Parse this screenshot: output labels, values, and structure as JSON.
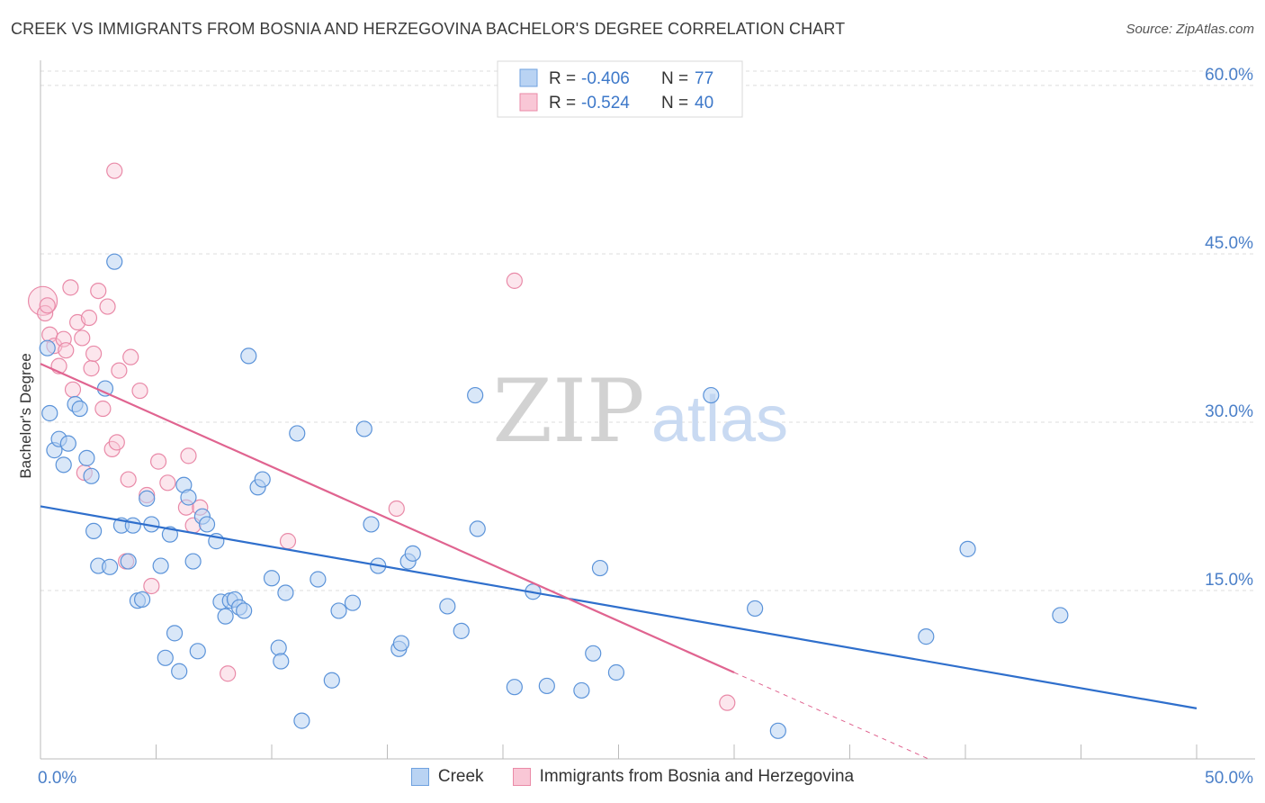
{
  "title": "CREEK VS IMMIGRANTS FROM BOSNIA AND HERZEGOVINA BACHELOR'S DEGREE CORRELATION CHART",
  "source": "Source: ZipAtlas.com",
  "watermark": {
    "zip": "ZIP",
    "atlas": "atlas"
  },
  "colors": {
    "blue": "#5b93d9",
    "blue_line": "#2f6fcc",
    "pink": "#e98aa8",
    "pink_line": "#e06490",
    "axis_text": "#4a7fc8"
  },
  "legend_top": [
    {
      "r_label": "R = ",
      "r_value": "-0.406",
      "n_label": "N = ",
      "n_value": "77"
    },
    {
      "r_label": "R = ",
      "r_value": "-0.524",
      "n_label": "N = ",
      "n_value": "40"
    }
  ],
  "chart_data": {
    "type": "scatter",
    "title": "CREEK VS IMMIGRANTS FROM BOSNIA AND HERZEGOVINA BACHELOR'S DEGREE CORRELATION CHART",
    "xlabel": "",
    "ylabel": "Bachelor's Degree",
    "xlim": [
      0,
      50
    ],
    "ylim": [
      0,
      62
    ],
    "x_ticks": [
      {
        "value": 0,
        "label": "0.0%"
      },
      {
        "value": 50,
        "label": "50.0%"
      }
    ],
    "y_ticks": [
      {
        "value": 15,
        "label": "15.0%"
      },
      {
        "value": 30,
        "label": "30.0%"
      },
      {
        "value": 45,
        "label": "45.0%"
      },
      {
        "value": 60,
        "label": "60.0%"
      }
    ],
    "series": [
      {
        "name": "Creek",
        "color": "#5b93d9",
        "trend": {
          "x0": 0,
          "y0": 22.5,
          "x1": 50,
          "y1": 4.5
        },
        "points": [
          [
            0.3,
            36.6
          ],
          [
            0.4,
            30.8
          ],
          [
            0.6,
            27.5
          ],
          [
            0.8,
            28.5
          ],
          [
            1.0,
            26.2
          ],
          [
            1.2,
            28.1
          ],
          [
            1.5,
            31.6
          ],
          [
            1.7,
            31.2
          ],
          [
            2.0,
            26.8
          ],
          [
            2.2,
            25.2
          ],
          [
            2.3,
            20.3
          ],
          [
            2.5,
            17.2
          ],
          [
            2.8,
            33.0
          ],
          [
            3.0,
            17.1
          ],
          [
            3.2,
            44.3
          ],
          [
            3.5,
            20.8
          ],
          [
            3.8,
            17.6
          ],
          [
            4.0,
            20.8
          ],
          [
            4.2,
            14.1
          ],
          [
            4.4,
            14.2
          ],
          [
            4.6,
            23.2
          ],
          [
            4.8,
            20.9
          ],
          [
            5.2,
            17.2
          ],
          [
            5.4,
            9.0
          ],
          [
            5.6,
            20.0
          ],
          [
            5.8,
            11.2
          ],
          [
            6.0,
            7.8
          ],
          [
            6.2,
            24.4
          ],
          [
            6.4,
            23.3
          ],
          [
            6.6,
            17.6
          ],
          [
            6.8,
            9.6
          ],
          [
            7.0,
            21.6
          ],
          [
            7.2,
            20.9
          ],
          [
            7.6,
            19.4
          ],
          [
            7.8,
            14.0
          ],
          [
            8.0,
            12.7
          ],
          [
            8.2,
            14.1
          ],
          [
            8.4,
            14.2
          ],
          [
            8.6,
            13.5
          ],
          [
            8.8,
            13.2
          ],
          [
            9.0,
            35.9
          ],
          [
            9.4,
            24.2
          ],
          [
            9.6,
            24.9
          ],
          [
            10.0,
            16.1
          ],
          [
            10.3,
            9.9
          ],
          [
            10.4,
            8.7
          ],
          [
            10.6,
            14.8
          ],
          [
            11.1,
            29.0
          ],
          [
            11.3,
            3.4
          ],
          [
            12.0,
            16.0
          ],
          [
            12.6,
            7.0
          ],
          [
            12.9,
            13.2
          ],
          [
            13.5,
            13.9
          ],
          [
            14.0,
            29.4
          ],
          [
            14.3,
            20.9
          ],
          [
            14.6,
            17.2
          ],
          [
            15.5,
            9.8
          ],
          [
            15.6,
            10.3
          ],
          [
            15.9,
            17.6
          ],
          [
            16.1,
            18.3
          ],
          [
            17.6,
            13.6
          ],
          [
            18.2,
            11.4
          ],
          [
            18.8,
            32.4
          ],
          [
            18.9,
            20.5
          ],
          [
            20.5,
            6.4
          ],
          [
            21.3,
            14.9
          ],
          [
            21.9,
            6.5
          ],
          [
            23.4,
            6.1
          ],
          [
            23.9,
            9.4
          ],
          [
            24.2,
            17.0
          ],
          [
            24.9,
            7.7
          ],
          [
            29.0,
            32.4
          ],
          [
            30.9,
            13.4
          ],
          [
            31.9,
            2.5
          ],
          [
            38.3,
            10.9
          ],
          [
            40.1,
            18.7
          ],
          [
            44.1,
            12.8
          ]
        ]
      },
      {
        "name": "Immigrants from Bosnia and Herzegovina",
        "color": "#e98aa8",
        "trend": {
          "x0": 0,
          "y0": 35.2,
          "x1": 30,
          "y1": 7.7
        },
        "trend_dashed": {
          "x0": 30,
          "y0": 7.7,
          "x1": 38.4,
          "y1": 0
        },
        "points": [
          [
            0.1,
            40.8
          ],
          [
            0.2,
            39.7
          ],
          [
            0.4,
            37.8
          ],
          [
            0.6,
            36.8
          ],
          [
            0.8,
            35.0
          ],
          [
            1.0,
            37.4
          ],
          [
            1.1,
            36.4
          ],
          [
            1.3,
            42.0
          ],
          [
            1.4,
            32.9
          ],
          [
            1.6,
            38.9
          ],
          [
            1.8,
            37.5
          ],
          [
            1.9,
            25.5
          ],
          [
            2.1,
            39.3
          ],
          [
            2.2,
            34.8
          ],
          [
            2.3,
            36.1
          ],
          [
            2.5,
            41.7
          ],
          [
            2.7,
            31.2
          ],
          [
            2.9,
            40.3
          ],
          [
            3.1,
            27.6
          ],
          [
            3.2,
            52.4
          ],
          [
            3.3,
            28.2
          ],
          [
            3.4,
            34.6
          ],
          [
            3.7,
            17.6
          ],
          [
            3.8,
            24.9
          ],
          [
            3.9,
            35.8
          ],
          [
            4.3,
            32.8
          ],
          [
            4.6,
            23.5
          ],
          [
            4.8,
            15.4
          ],
          [
            5.1,
            26.5
          ],
          [
            5.5,
            24.6
          ],
          [
            6.3,
            22.4
          ],
          [
            6.4,
            27.0
          ],
          [
            6.6,
            20.8
          ],
          [
            6.9,
            22.4
          ],
          [
            8.1,
            7.6
          ],
          [
            10.7,
            19.4
          ],
          [
            15.4,
            22.3
          ],
          [
            20.5,
            42.6
          ],
          [
            29.7,
            5.0
          ],
          [
            0.3,
            40.4
          ]
        ]
      }
    ]
  }
}
